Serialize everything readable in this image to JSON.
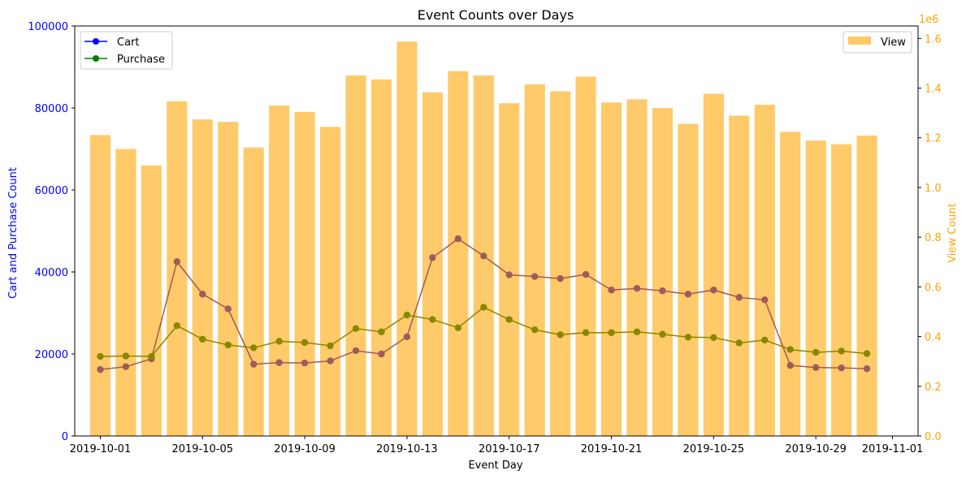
{
  "chart_data": {
    "type": "bar",
    "title": "Event Counts over Days",
    "xlabel": "Event Day",
    "ylabel_left": "Cart and Purchase Count",
    "ylabel_right": "View Count",
    "right_axis_multiplier": "1e6",
    "x_dates": [
      "2019-10-01",
      "2019-10-02",
      "2019-10-03",
      "2019-10-04",
      "2019-10-05",
      "2019-10-06",
      "2019-10-07",
      "2019-10-08",
      "2019-10-09",
      "2019-10-10",
      "2019-10-11",
      "2019-10-12",
      "2019-10-13",
      "2019-10-14",
      "2019-10-15",
      "2019-10-16",
      "2019-10-17",
      "2019-10-18",
      "2019-10-19",
      "2019-10-20",
      "2019-10-21",
      "2019-10-22",
      "2019-10-23",
      "2019-10-24",
      "2019-10-25",
      "2019-10-26",
      "2019-10-27",
      "2019-10-28",
      "2019-10-29",
      "2019-10-30",
      "2019-10-31"
    ],
    "xlim": [
      "2019-09-30",
      "2019-11-02"
    ],
    "x_tick_labels": [
      "2019-10-01",
      "2019-10-05",
      "2019-10-09",
      "2019-10-13",
      "2019-10-17",
      "2019-10-21",
      "2019-10-25",
      "2019-10-29",
      "2019-11-01"
    ],
    "ylim_left": [
      0,
      100000
    ],
    "y_ticks_left": [
      "0",
      "20000",
      "40000",
      "60000",
      "80000",
      "100000"
    ],
    "ylim_right": [
      0,
      1.65
    ],
    "y_ticks_right": [
      "0.0",
      "0.2",
      "0.4",
      "0.6",
      "0.8",
      "1.0",
      "1.2",
      "1.4",
      "1.6"
    ],
    "series": [
      {
        "name": "Cart",
        "axis": "left",
        "kind": "line",
        "color": "#0000ff",
        "values": [
          16200,
          16900,
          18800,
          42500,
          34600,
          31000,
          17500,
          17900,
          17800,
          18300,
          20800,
          20000,
          24200,
          43500,
          48100,
          43900,
          39300,
          38900,
          38400,
          39400,
          35600,
          36000,
          35400,
          34600,
          35600,
          33800,
          33200,
          17200,
          16700,
          16600,
          16400
        ]
      },
      {
        "name": "Purchase",
        "axis": "left",
        "kind": "line",
        "color": "#008000",
        "values": [
          19400,
          19500,
          19400,
          26900,
          23600,
          22200,
          21500,
          23100,
          22800,
          22000,
          26200,
          25400,
          29500,
          28400,
          26400,
          31400,
          28400,
          25900,
          24700,
          25200,
          25200,
          25400,
          24800,
          24100,
          24000,
          22700,
          23400,
          21100,
          20400,
          20700,
          20100
        ]
      },
      {
        "name": "View",
        "axis": "right",
        "kind": "bar",
        "color": "#ffc966",
        "values": [
          1.211,
          1.155,
          1.089,
          1.347,
          1.274,
          1.264,
          1.161,
          1.33,
          1.304,
          1.244,
          1.451,
          1.435,
          1.587,
          1.383,
          1.468,
          1.451,
          1.339,
          1.415,
          1.387,
          1.446,
          1.342,
          1.355,
          1.32,
          1.256,
          1.377,
          1.289,
          1.333,
          1.224,
          1.189,
          1.174,
          1.209
        ]
      }
    ],
    "legend_left_placement": "upper-left",
    "legend_right_placement": "upper-right",
    "grid": false,
    "colors": {
      "left_axis": "#0000ff",
      "right_axis": "#ffa500",
      "cart": "#0000ff",
      "purchase": "#008000",
      "view": "#ffc966",
      "overlap_marker": "#a05a5a",
      "purchase_overlap": "#888800"
    }
  }
}
